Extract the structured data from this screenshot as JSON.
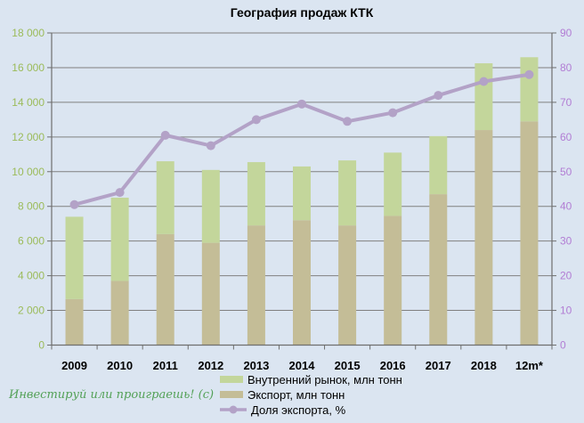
{
  "chart_data": {
    "type": "combo-stacked-bar-line",
    "title": "География продаж КТК",
    "categories": [
      "2009",
      "2010",
      "2011",
      "2012",
      "2013",
      "2014",
      "2015",
      "2016",
      "2017",
      "2018",
      "12m*"
    ],
    "bar_series": [
      {
        "name": "Внутренний рынок, млн тонн",
        "color_key": "domestic",
        "stack": "top",
        "values": [
          4750,
          4800,
          4200,
          4200,
          3650,
          3100,
          3750,
          3650,
          3350,
          3850,
          3700
        ]
      },
      {
        "name": "Экспорт, млн тонн",
        "color_key": "export",
        "stack": "bottom",
        "values": [
          2650,
          3700,
          6400,
          5900,
          6900,
          7200,
          6900,
          7450,
          8700,
          12400,
          12900
        ]
      }
    ],
    "line_series": {
      "name": "Доля экспорта, %",
      "color_key": "line",
      "axis": "right",
      "values": [
        40.5,
        44,
        60.5,
        57.5,
        65,
        69.5,
        64.5,
        67,
        72,
        76,
        78
      ]
    },
    "left_axis": {
      "min": 0,
      "max": 18000,
      "step": 2000,
      "tick_labels": [
        "0",
        "2 000",
        "4 000",
        "6 000",
        "8 000",
        "10 000",
        "12 000",
        "14 000",
        "16 000",
        "18 000"
      ]
    },
    "right_axis": {
      "min": 0,
      "max": 90,
      "step": 10,
      "tick_labels": [
        "0",
        "10",
        "20",
        "30",
        "40",
        "50",
        "60",
        "70",
        "80",
        "90"
      ]
    },
    "grid": "horizontal",
    "legend_position": "bottom-center"
  },
  "legend": {
    "items": [
      {
        "label": "Внутренний рынок, млн тонн",
        "swatch": "rect",
        "color_key": "domestic"
      },
      {
        "label": "Экспорт, млн тонн",
        "swatch": "rect",
        "color_key": "export"
      },
      {
        "label": "Доля экспорта, %",
        "swatch": "line-marker",
        "color_key": "line"
      }
    ]
  },
  "watermark": {
    "text": "Инвестируй или проиграешь! (с)"
  },
  "colors": {
    "background": "#dbe5f1",
    "domestic": "#c3d69b",
    "export": "#c4bd97",
    "line": "#b3a2c7",
    "grid": "#808080",
    "axis": "#6e6e6e",
    "left_axis_labels": "#9bbb59",
    "right_axis_labels": "#b27dd4",
    "x_labels": "#000000",
    "title": "#000000",
    "legend_text": "#000000",
    "watermark": "#53a157"
  }
}
